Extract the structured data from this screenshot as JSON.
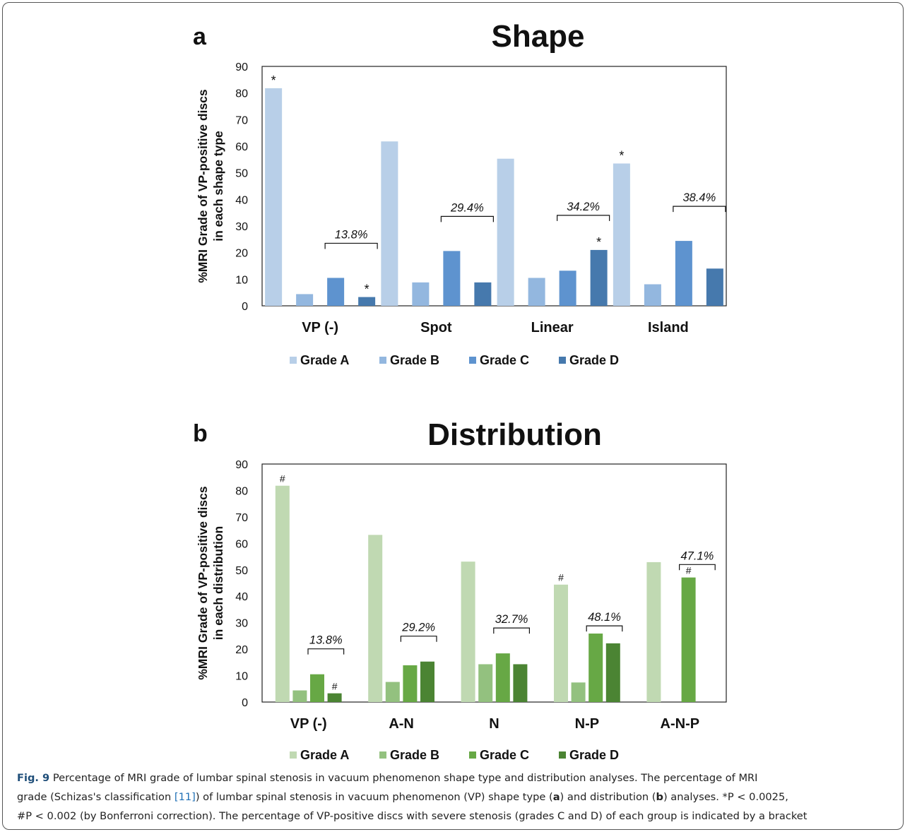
{
  "chart_data": [
    {
      "type": "bar",
      "panel_label": "a",
      "title": "Shape",
      "ylabel_line1": "%MRI Grade of VP-positive discs",
      "ylabel_line2": "in each shape type",
      "ylim": [
        0,
        90
      ],
      "yticks": [
        0,
        10,
        20,
        30,
        40,
        50,
        60,
        70,
        80,
        90
      ],
      "categories": [
        "VP (-)",
        "Spot",
        "Linear",
        "Island"
      ],
      "series": [
        {
          "name": "Grade A",
          "color": "#b8cfe8",
          "values": [
            81.8,
            61.8,
            55.3,
            53.5
          ]
        },
        {
          "name": "Grade B",
          "color": "#93b7df",
          "values": [
            4.4,
            8.8,
            10.5,
            8.1
          ]
        },
        {
          "name": "Grade C",
          "color": "#5e93cf",
          "values": [
            10.5,
            20.6,
            13.2,
            24.4
          ]
        },
        {
          "name": "Grade D",
          "color": "#4679ad",
          "values": [
            3.3,
            8.8,
            21.0,
            14.0
          ]
        }
      ],
      "markers": [
        {
          "category": 0,
          "series": 0,
          "symbol": "*"
        },
        {
          "category": 0,
          "series": 3,
          "symbol": "*"
        },
        {
          "category": 2,
          "series": 3,
          "symbol": "*"
        },
        {
          "category": 3,
          "series": 0,
          "symbol": "*"
        }
      ],
      "brackets": [
        {
          "category": 0,
          "label": "13.8%"
        },
        {
          "category": 1,
          "label": "29.4%"
        },
        {
          "category": 2,
          "label": "34.2%"
        },
        {
          "category": 3,
          "label": "38.4%"
        }
      ]
    },
    {
      "type": "bar",
      "panel_label": "b",
      "title": "Distribution",
      "ylabel_line1": "%MRI Grade of VP-positive discs",
      "ylabel_line2": "in each distribution",
      "ylim": [
        0,
        90
      ],
      "yticks": [
        0,
        10,
        20,
        30,
        40,
        50,
        60,
        70,
        80,
        90
      ],
      "categories": [
        "VP (-)",
        "A-N",
        "N",
        "N-P",
        "A-N-P"
      ],
      "series": [
        {
          "name": "Grade A",
          "color": "#c0d9b2",
          "values": [
            81.8,
            63.2,
            53.1,
            44.4,
            52.9
          ]
        },
        {
          "name": "Grade B",
          "color": "#93c17f",
          "values": [
            4.4,
            7.6,
            14.3,
            7.4,
            0
          ]
        },
        {
          "name": "Grade C",
          "color": "#67a845",
          "values": [
            10.5,
            13.9,
            18.4,
            25.9,
            47.1
          ]
        },
        {
          "name": "Grade D",
          "color": "#4b8433",
          "values": [
            3.3,
            15.3,
            14.3,
            22.2,
            0
          ]
        }
      ],
      "markers": [
        {
          "category": 0,
          "series": 0,
          "symbol": "#"
        },
        {
          "category": 0,
          "series": 3,
          "symbol": "#"
        },
        {
          "category": 3,
          "series": 0,
          "symbol": "#"
        },
        {
          "category": 4,
          "series": 2,
          "symbol": "#"
        }
      ],
      "brackets": [
        {
          "category": 0,
          "label": "13.8%"
        },
        {
          "category": 1,
          "label": "29.2%"
        },
        {
          "category": 2,
          "label": "32.7%"
        },
        {
          "category": 3,
          "label": "48.1%"
        },
        {
          "category": 4,
          "label": "47.1%"
        }
      ]
    }
  ],
  "caption": {
    "fig_label": "Fig. 9",
    "line1_text": " Percentage of MRI grade of lumbar spinal stenosis in vacuum phenomenon shape type and distribution analyses. The percentage of MRI",
    "line2_pre": "grade (Schizas's classification ",
    "ref": "[11]",
    "line2_mid": ") of lumbar spinal stenosis in vacuum phenomenon (VP) shape type (",
    "a": "a",
    "line2_mid2": ") and distribution (",
    "b": "b",
    "line2_post": ") analyses. *P < 0.0025,",
    "line3": "#P < 0.002 (by Bonferroni correction). The percentage of VP-positive discs with severe stenosis (grades C and D) of each group is indicated by a bracket"
  }
}
